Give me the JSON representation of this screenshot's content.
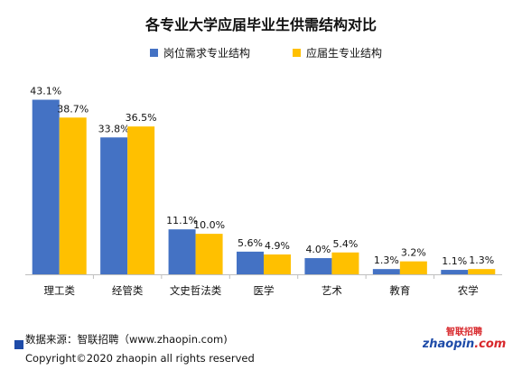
{
  "colors": {
    "series1": "#4472C4",
    "series2": "#FFC000",
    "axis": "#BFBFBF",
    "logo_blue": "#1E4BA8",
    "logo_red": "#D8282C"
  },
  "footer": {
    "source": "数据来源：智联招聘（www.zhaopin.com)",
    "copyright": "Copyright©2020 zhaopin all rights reserved"
  },
  "logo": {
    "name": "zhaopin-logo",
    "text": "zhaopin.com",
    "cn_text": "智联招聘"
  },
  "chart_data": {
    "type": "bar",
    "title": "各专业大学应届毕业生供需结构对比",
    "categories": [
      "理工类",
      "经管类",
      "文史哲法类",
      "医学",
      "艺术",
      "教育",
      "农学"
    ],
    "series": [
      {
        "name": "岗位需求专业结构",
        "values": [
          43.1,
          33.8,
          11.1,
          5.6,
          4.0,
          1.3,
          1.1
        ],
        "labels": [
          "43.1%",
          "33.8%",
          "11.1%",
          "5.6%",
          "4.0%",
          "1.3%",
          "1.1%"
        ]
      },
      {
        "name": "应届生专业结构",
        "values": [
          38.7,
          36.5,
          10.0,
          4.9,
          5.4,
          3.2,
          1.3
        ],
        "labels": [
          "38.7%",
          "36.5%",
          "10.0%",
          "4.9%",
          "5.4%",
          "3.2%",
          "1.3%"
        ]
      }
    ],
    "ylim": [
      0,
      45
    ],
    "grid": false,
    "legend": "top-center"
  }
}
